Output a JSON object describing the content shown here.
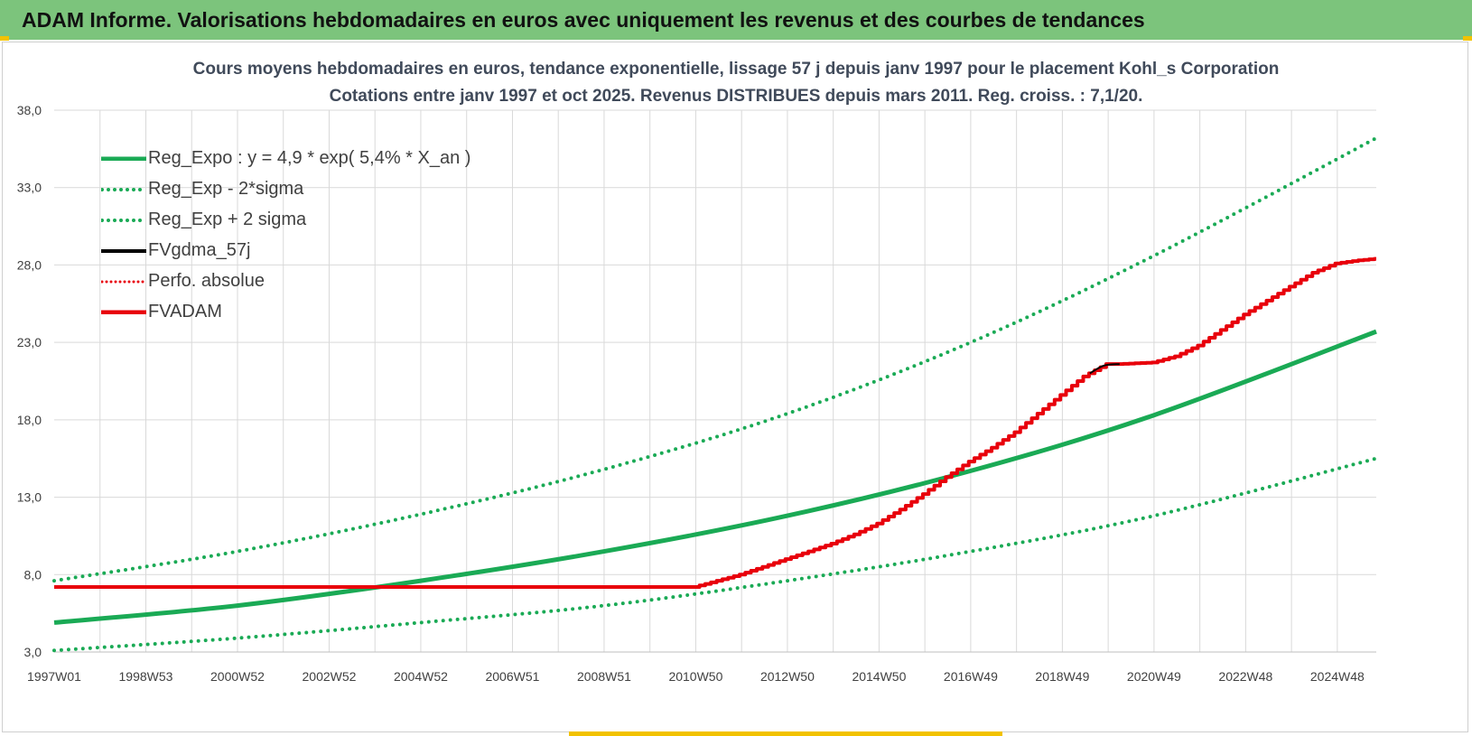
{
  "banner": {
    "title": "ADAM Informe. Valorisations hebdomadaires en euros avec uniquement les revenus et des courbes de tendances"
  },
  "colors": {
    "banner_bg": "#7cc47c",
    "green": "#1aaa55",
    "red": "#e8000b",
    "black": "#000000",
    "grid": "#d9d9d9"
  },
  "chart_data": {
    "type": "line",
    "title_line1": "Cours moyens hebdomadaires en euros, tendance exponentielle, lissage 57 j depuis janv 1997 pour le placement Kohl_s Corporation",
    "title_line2": "Cotations entre janv 1997 et oct 2025. Revenus DISTRIBUES depuis mars 2011. Reg. croiss. : 7,1/20.",
    "x_range": [
      1997.0,
      2025.85
    ],
    "x_ticks": [
      {
        "label": "1997W01",
        "x": 1997.0
      },
      {
        "label": "1998W53",
        "x": 1999.0
      },
      {
        "label": "2000W52",
        "x": 2001.0
      },
      {
        "label": "2002W52",
        "x": 2003.0
      },
      {
        "label": "2004W52",
        "x": 2005.0
      },
      {
        "label": "2006W51",
        "x": 2007.0
      },
      {
        "label": "2008W51",
        "x": 2009.0
      },
      {
        "label": "2010W50",
        "x": 2011.0
      },
      {
        "label": "2012W50",
        "x": 2013.0
      },
      {
        "label": "2014W50",
        "x": 2015.0
      },
      {
        "label": "2016W49",
        "x": 2017.0
      },
      {
        "label": "2018W49",
        "x": 2019.0
      },
      {
        "label": "2020W49",
        "x": 2021.0
      },
      {
        "label": "2022W48",
        "x": 2023.0
      },
      {
        "label": "2024W48",
        "x": 2025.0
      }
    ],
    "ylim": [
      3.0,
      38.0
    ],
    "y_ticks": [
      "3,0",
      "8,0",
      "13,0",
      "18,0",
      "23,0",
      "28,0",
      "33,0",
      "38,0"
    ],
    "y_tick_values": [
      3,
      8,
      13,
      18,
      23,
      28,
      33,
      38
    ],
    "legend": [
      {
        "label": "Reg_Expo : y = 4,9 * exp( 5,4% *  X_an )",
        "style": "solid",
        "color": "#1aaa55"
      },
      {
        "label": "Reg_Exp - 2*sigma",
        "style": "dotted",
        "color": "#1aaa55"
      },
      {
        "label": "Reg_Exp + 2 sigma",
        "style": "dotted",
        "color": "#1aaa55"
      },
      {
        "label": "FVgdma_57j",
        "style": "solid",
        "color": "#000000"
      },
      {
        "label": "Perfo. absolue",
        "style": "dotted",
        "color": "#e8000b"
      },
      {
        "label": "FVADAM",
        "style": "solid",
        "color": "#e8000b"
      }
    ],
    "series": [
      {
        "name": "Reg_Expo",
        "x": [
          1997.0,
          2001.0,
          2005.0,
          2009.0,
          2013.0,
          2017.0,
          2021.0,
          2025.85
        ],
        "values": [
          4.9,
          6.0,
          7.6,
          9.5,
          11.8,
          14.7,
          18.3,
          23.7
        ]
      },
      {
        "name": "Reg_Exp - 2*sigma",
        "x": [
          1997.0,
          2001.0,
          2005.0,
          2009.0,
          2013.0,
          2017.0,
          2021.0,
          2025.85
        ],
        "values": [
          3.1,
          3.9,
          4.9,
          6.0,
          7.6,
          9.5,
          11.8,
          15.5
        ]
      },
      {
        "name": "Reg_Exp + 2 sigma",
        "x": [
          1997.0,
          2001.0,
          2005.0,
          2009.0,
          2013.0,
          2017.0,
          2021.0,
          2025.85
        ],
        "values": [
          7.6,
          9.5,
          11.9,
          14.8,
          18.4,
          23.0,
          28.6,
          36.2
        ]
      },
      {
        "name": "FVADAM",
        "x": [
          1997.0,
          2011.0,
          2011.5,
          2012.0,
          2012.5,
          2013.0,
          2013.5,
          2014.0,
          2014.5,
          2015.0,
          2015.5,
          2016.0,
          2016.5,
          2017.0,
          2017.5,
          2018.0,
          2018.5,
          2019.0,
          2019.5,
          2020.0,
          2020.25,
          2021.0,
          2021.5,
          2022.0,
          2022.5,
          2023.0,
          2023.5,
          2024.0,
          2024.5,
          2025.0,
          2025.5,
          2025.85
        ],
        "values": [
          7.2,
          7.2,
          7.6,
          8.0,
          8.5,
          9.0,
          9.5,
          10.0,
          10.6,
          11.3,
          12.2,
          13.2,
          14.3,
          15.3,
          16.2,
          17.2,
          18.4,
          19.6,
          20.8,
          21.6,
          21.6,
          21.7,
          22.1,
          22.8,
          23.8,
          24.8,
          25.7,
          26.6,
          27.5,
          28.1,
          28.3,
          28.4
        ]
      },
      {
        "name": "FVgdma_57j",
        "x": [
          2019.6,
          2019.9,
          2020.25
        ],
        "values": [
          21.0,
          21.5,
          21.6
        ]
      }
    ]
  }
}
